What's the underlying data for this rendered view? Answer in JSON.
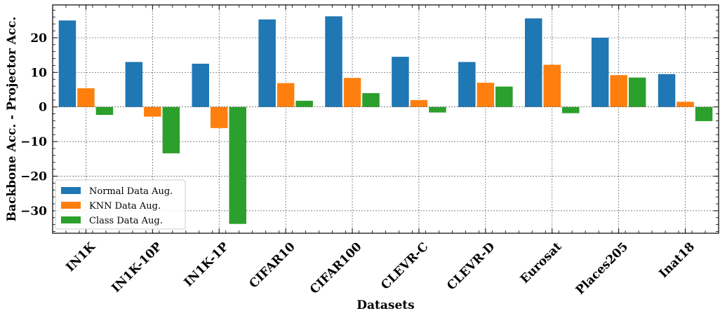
{
  "chart_data": {
    "type": "bar",
    "xlabel": "Datasets",
    "ylabel": "Backbone Acc. - Projector Acc.",
    "categories": [
      "IN1K",
      "IN1K-10P",
      "IN1K-1P",
      "CIFAR10",
      "CIFAR100",
      "CLEVR-C",
      "CLEVR-D",
      "Eurosat",
      "Places205",
      "Inat18"
    ],
    "series": [
      {
        "name": "Normal Data Aug.",
        "color": "#1f77b4",
        "values": [
          25.0,
          13.0,
          12.5,
          25.3,
          26.2,
          14.5,
          13.0,
          25.6,
          20.0,
          9.5
        ]
      },
      {
        "name": "KNN Data Aug.",
        "color": "#ff7f0e",
        "values": [
          5.4,
          -2.8,
          -6.1,
          6.9,
          8.4,
          2.0,
          7.0,
          12.2,
          9.2,
          1.5
        ]
      },
      {
        "name": "Class Data Aug.",
        "color": "#2ca02c",
        "values": [
          -2.3,
          -13.4,
          -33.8,
          1.8,
          4.0,
          -1.6,
          5.9,
          -1.8,
          8.5,
          -4.1
        ]
      }
    ],
    "ylim": [
      -36.5,
      29.5
    ],
    "yticks": [
      -30,
      -20,
      -10,
      0,
      10,
      20
    ],
    "ytick_labels": [
      "−30",
      "−20",
      "−10",
      "0",
      "10",
      "20"
    ],
    "grid": true,
    "legend_position": "lower-left"
  }
}
